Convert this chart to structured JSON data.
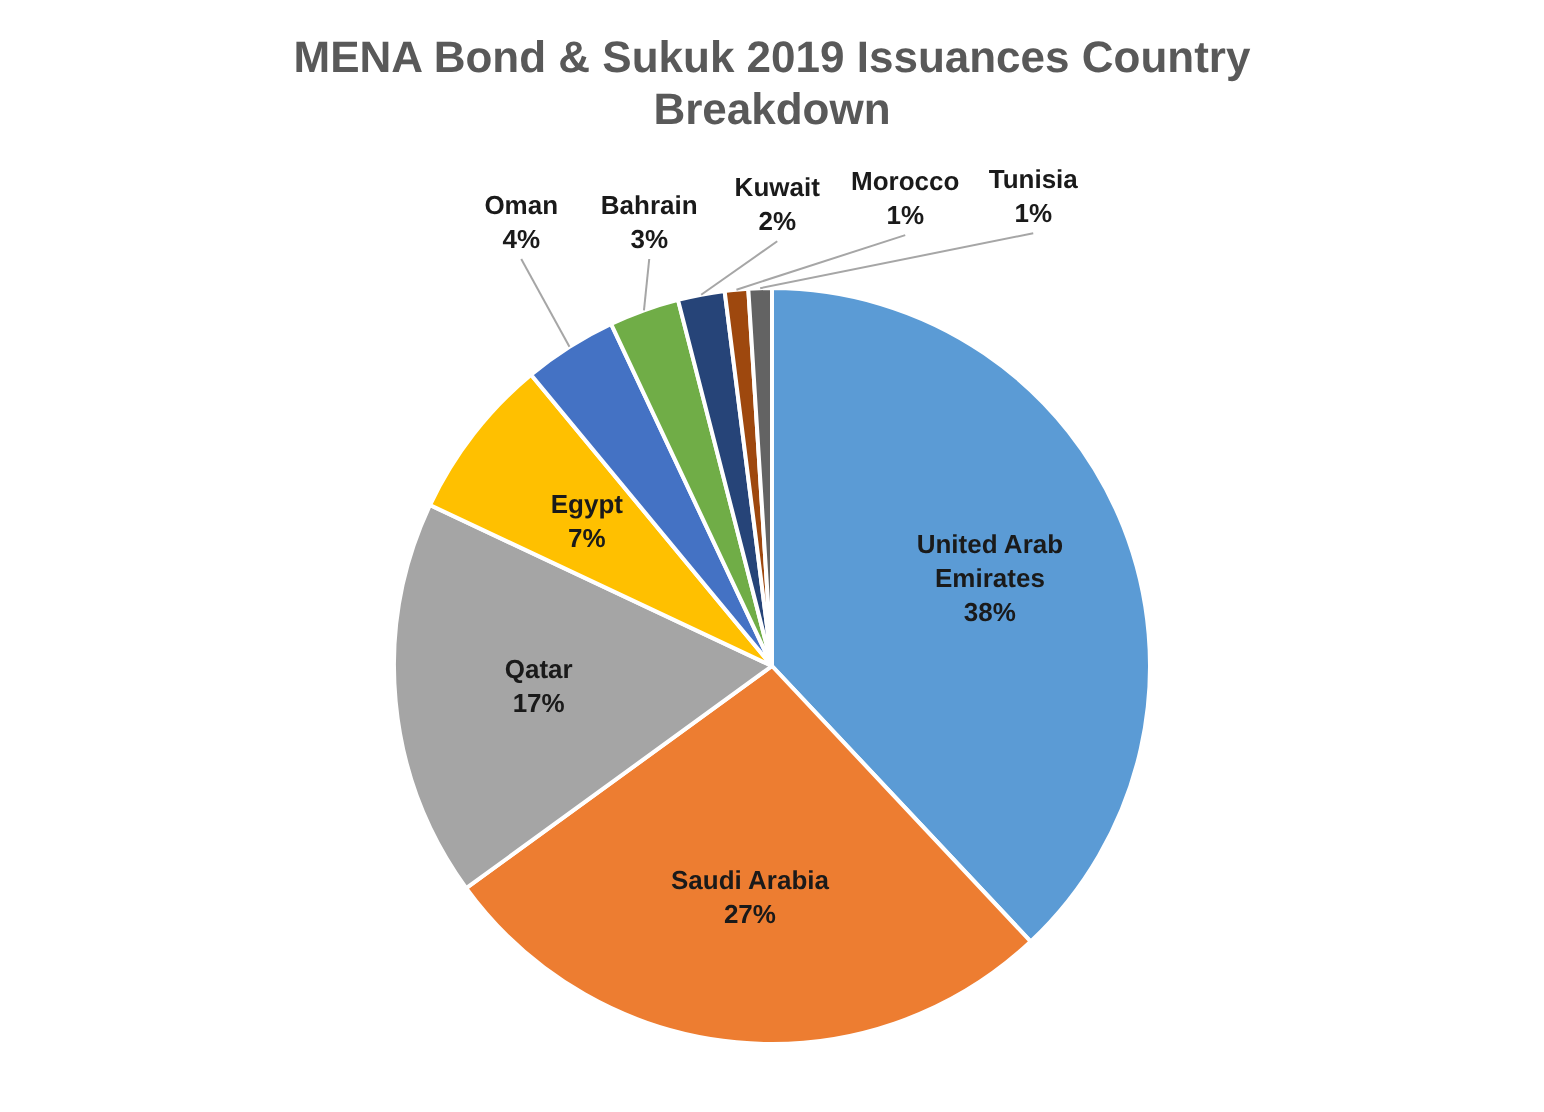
{
  "chart_data": {
    "type": "pie",
    "title": "MENA Bond & Sukuk 2019 Issuances Country Breakdown",
    "categories": [
      "United Arab Emirates",
      "Saudi Arabia",
      "Qatar",
      "Egypt",
      "Oman",
      "Bahrain",
      "Kuwait",
      "Morocco",
      "Tunisia"
    ],
    "values": [
      38,
      27,
      17,
      7,
      4,
      3,
      2,
      1,
      1
    ],
    "value_labels": [
      "38%",
      "27%",
      "17%",
      "7%",
      "4%",
      "3%",
      "2%",
      "1%",
      "1%"
    ],
    "colors": [
      "#5b9bd5",
      "#ed7d31",
      "#a5a5a5",
      "#ffc000",
      "#4472c4",
      "#70ad47",
      "#264478",
      "#9e480e",
      "#636363"
    ],
    "legend": false
  }
}
